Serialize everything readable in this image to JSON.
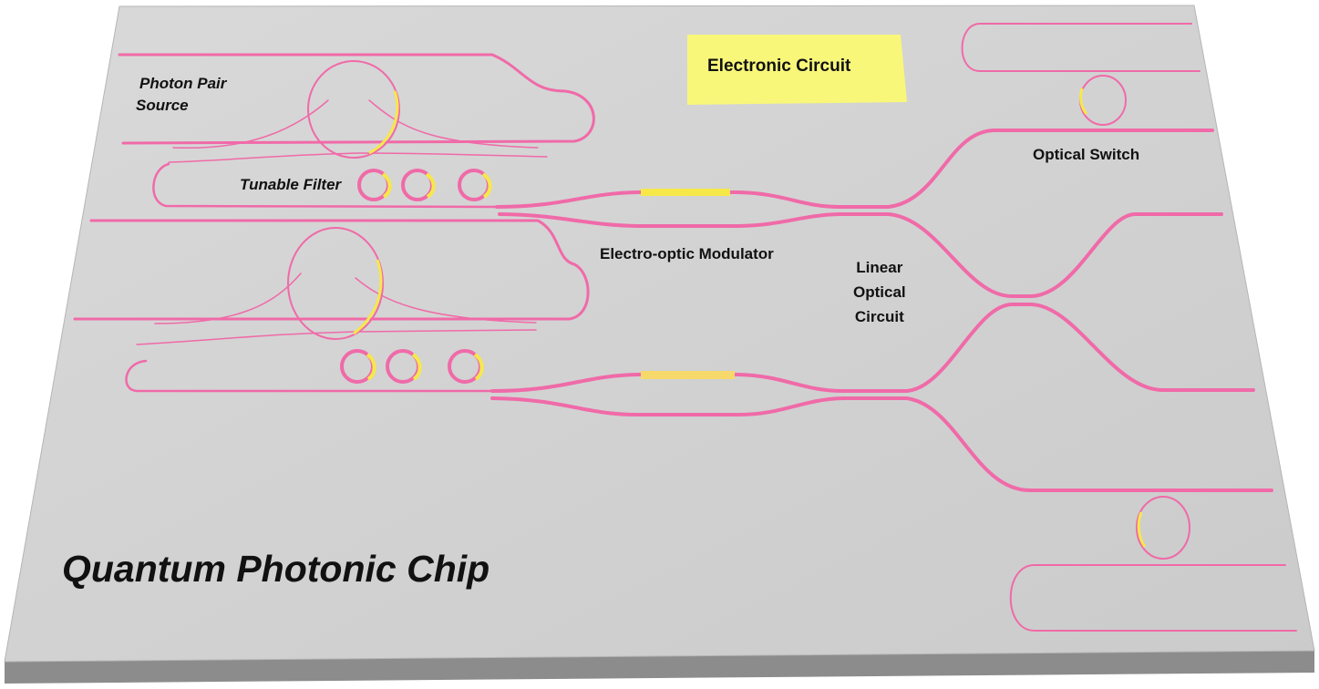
{
  "labels": {
    "photon_pair_source_line1": "Photon Pair",
    "photon_pair_source_line2": "Source",
    "tunable_filter": "Tunable Filter",
    "electro_optic_modulator": "Electro-optic Modulator",
    "linear_optical_circuit_line1": "Linear",
    "linear_optical_circuit_line2": "Optical",
    "linear_optical_circuit_line3": "Circuit",
    "optical_switch": "Optical Switch",
    "electronic_circuit": "Electronic Circuit",
    "chip_title": "Quantum Photonic Chip"
  },
  "colors": {
    "chip_surface": "#d2d2d2",
    "chip_edge": "#8c8c8c",
    "waveguide": "#f06aa8",
    "heater": "#f7e84a",
    "electronic_circuit_pad": "#f8f77a"
  }
}
